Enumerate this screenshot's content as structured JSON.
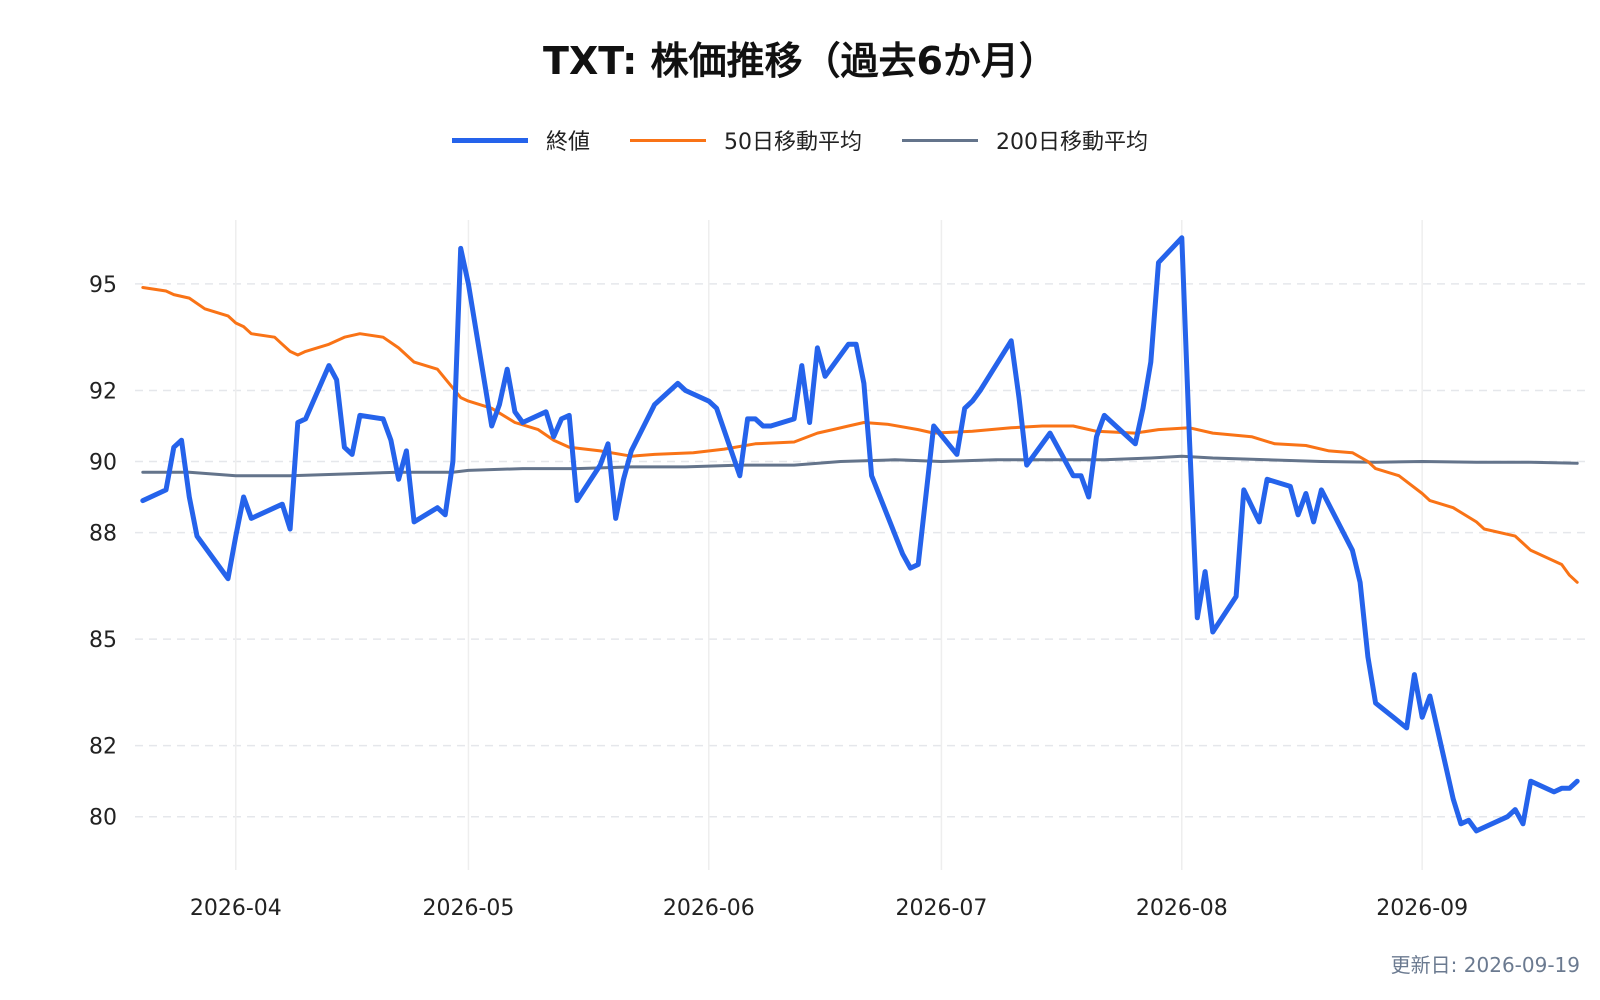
{
  "updated_note": "更新日: 2026-09-19",
  "chart_data": {
    "type": "line",
    "title": "TXT: 株価推移（過去6か月）",
    "xlabel": "",
    "ylabel": "",
    "x_ticks": [
      "2026-04",
      "2026-05",
      "2026-06",
      "2026-07",
      "2026-08",
      "2026-09"
    ],
    "y_ticks": [
      80,
      82,
      85,
      88,
      90,
      92,
      95
    ],
    "ylim": [
      78.5,
      96.8
    ],
    "xlim": [
      "2026-03-19",
      "2026-09-22"
    ],
    "grid": true,
    "legend_position": "top-center",
    "colors": {
      "close": "#2563eb",
      "ma50": "#f97316",
      "ma200": "#64748b",
      "grid": "#e5e7eb"
    },
    "series": [
      {
        "name": "終値",
        "key": "close",
        "points": [
          [
            "2026-03-20",
            88.9
          ],
          [
            "2026-03-23",
            89.2
          ],
          [
            "2026-03-24",
            90.4
          ],
          [
            "2026-03-25",
            90.6
          ],
          [
            "2026-03-26",
            89.0
          ],
          [
            "2026-03-27",
            87.9
          ],
          [
            "2026-03-30",
            87.0
          ],
          [
            "2026-03-31",
            86.7
          ],
          [
            "2026-04-01",
            87.9
          ],
          [
            "2026-04-02",
            89.0
          ],
          [
            "2026-04-03",
            88.4
          ],
          [
            "2026-04-06",
            88.7
          ],
          [
            "2026-04-07",
            88.8
          ],
          [
            "2026-04-08",
            88.1
          ],
          [
            "2026-04-09",
            91.1
          ],
          [
            "2026-04-10",
            91.2
          ],
          [
            "2026-04-13",
            92.7
          ],
          [
            "2026-04-14",
            92.3
          ],
          [
            "2026-04-15",
            90.4
          ],
          [
            "2026-04-16",
            90.2
          ],
          [
            "2026-04-17",
            91.3
          ],
          [
            "2026-04-20",
            91.2
          ],
          [
            "2026-04-21",
            90.6
          ],
          [
            "2026-04-22",
            89.5
          ],
          [
            "2026-04-23",
            90.3
          ],
          [
            "2026-04-24",
            88.3
          ],
          [
            "2026-04-27",
            88.7
          ],
          [
            "2026-04-28",
            88.5
          ],
          [
            "2026-04-29",
            90.0
          ],
          [
            "2026-04-30",
            96.0
          ],
          [
            "2026-05-01",
            95.0
          ],
          [
            "2026-05-04",
            91.0
          ],
          [
            "2026-05-05",
            91.6
          ],
          [
            "2026-05-06",
            92.6
          ],
          [
            "2026-05-07",
            91.4
          ],
          [
            "2026-05-08",
            91.1
          ],
          [
            "2026-05-11",
            91.4
          ],
          [
            "2026-05-12",
            90.7
          ],
          [
            "2026-05-13",
            91.2
          ],
          [
            "2026-05-14",
            91.3
          ],
          [
            "2026-05-15",
            88.9
          ],
          [
            "2026-05-18",
            89.9
          ],
          [
            "2026-05-19",
            90.5
          ],
          [
            "2026-05-20",
            88.4
          ],
          [
            "2026-05-21",
            89.5
          ],
          [
            "2026-05-22",
            90.3
          ],
          [
            "2026-05-25",
            91.6
          ],
          [
            "2026-05-28",
            92.2
          ],
          [
            "2026-05-29",
            92.0
          ],
          [
            "2026-06-01",
            91.7
          ],
          [
            "2026-06-02",
            91.5
          ],
          [
            "2026-06-05",
            89.6
          ],
          [
            "2026-06-06",
            91.2
          ],
          [
            "2026-06-07",
            91.2
          ],
          [
            "2026-06-08",
            91.0
          ],
          [
            "2026-06-09",
            91.0
          ],
          [
            "2026-06-12",
            91.2
          ],
          [
            "2026-06-13",
            92.7
          ],
          [
            "2026-06-14",
            91.1
          ],
          [
            "2026-06-15",
            93.2
          ],
          [
            "2026-06-16",
            92.4
          ],
          [
            "2026-06-19",
            93.3
          ],
          [
            "2026-06-20",
            93.3
          ],
          [
            "2026-06-21",
            92.2
          ],
          [
            "2026-06-22",
            89.6
          ],
          [
            "2026-06-26",
            87.4
          ],
          [
            "2026-06-27",
            87.0
          ],
          [
            "2026-06-28",
            87.1
          ],
          [
            "2026-06-30",
            91.0
          ],
          [
            "2026-07-03",
            90.2
          ],
          [
            "2026-07-04",
            91.5
          ],
          [
            "2026-07-05",
            91.7
          ],
          [
            "2026-07-06",
            92.0
          ],
          [
            "2026-07-10",
            93.4
          ],
          [
            "2026-07-11",
            91.8
          ],
          [
            "2026-07-12",
            89.9
          ],
          [
            "2026-07-15",
            90.8
          ],
          [
            "2026-07-18",
            89.6
          ],
          [
            "2026-07-19",
            89.6
          ],
          [
            "2026-07-20",
            89.0
          ],
          [
            "2026-07-21",
            90.7
          ],
          [
            "2026-07-22",
            91.3
          ],
          [
            "2026-07-26",
            90.5
          ],
          [
            "2026-07-27",
            91.5
          ],
          [
            "2026-07-28",
            92.8
          ],
          [
            "2026-07-29",
            95.6
          ],
          [
            "2026-08-01",
            96.3
          ],
          [
            "2026-08-02",
            90.6
          ],
          [
            "2026-08-03",
            85.6
          ],
          [
            "2026-08-04",
            86.9
          ],
          [
            "2026-08-05",
            85.2
          ],
          [
            "2026-08-08",
            86.2
          ],
          [
            "2026-08-09",
            89.2
          ],
          [
            "2026-08-11",
            88.3
          ],
          [
            "2026-08-12",
            89.5
          ],
          [
            "2026-08-15",
            89.3
          ],
          [
            "2026-08-16",
            88.5
          ],
          [
            "2026-08-17",
            89.1
          ],
          [
            "2026-08-18",
            88.3
          ],
          [
            "2026-08-19",
            89.2
          ],
          [
            "2026-08-23",
            87.5
          ],
          [
            "2026-08-24",
            86.6
          ],
          [
            "2026-08-25",
            84.5
          ],
          [
            "2026-08-26",
            83.2
          ],
          [
            "2026-08-30",
            82.5
          ],
          [
            "2026-08-31",
            84.0
          ],
          [
            "2026-09-01",
            82.8
          ],
          [
            "2026-09-02",
            83.4
          ],
          [
            "2026-09-05",
            80.5
          ],
          [
            "2026-09-06",
            79.8
          ],
          [
            "2026-09-07",
            79.9
          ],
          [
            "2026-09-08",
            79.6
          ],
          [
            "2026-09-12",
            80.0
          ],
          [
            "2026-09-13",
            80.2
          ],
          [
            "2026-09-14",
            79.8
          ],
          [
            "2026-09-15",
            81.0
          ],
          [
            "2026-09-18",
            80.7
          ],
          [
            "2026-09-19",
            80.8
          ],
          [
            "2026-09-20",
            80.8
          ],
          [
            "2026-09-21",
            81.0
          ]
        ]
      },
      {
        "name": "50日移動平均",
        "key": "ma50",
        "points": [
          [
            "2026-03-20",
            94.9
          ],
          [
            "2026-03-23",
            94.8
          ],
          [
            "2026-03-24",
            94.7
          ],
          [
            "2026-03-26",
            94.6
          ],
          [
            "2026-03-28",
            94.3
          ],
          [
            "2026-03-31",
            94.1
          ],
          [
            "2026-04-01",
            93.9
          ],
          [
            "2026-04-02",
            93.8
          ],
          [
            "2026-04-03",
            93.6
          ],
          [
            "2026-04-06",
            93.5
          ],
          [
            "2026-04-07",
            93.3
          ],
          [
            "2026-04-08",
            93.1
          ],
          [
            "2026-04-09",
            93.0
          ],
          [
            "2026-04-10",
            93.1
          ],
          [
            "2026-04-13",
            93.3
          ],
          [
            "2026-04-15",
            93.5
          ],
          [
            "2026-04-17",
            93.6
          ],
          [
            "2026-04-20",
            93.5
          ],
          [
            "2026-04-22",
            93.2
          ],
          [
            "2026-04-24",
            92.8
          ],
          [
            "2026-04-27",
            92.6
          ],
          [
            "2026-04-30",
            91.8
          ],
          [
            "2026-05-01",
            91.7
          ],
          [
            "2026-05-04",
            91.5
          ],
          [
            "2026-05-07",
            91.1
          ],
          [
            "2026-05-10",
            90.9
          ],
          [
            "2026-05-12",
            90.6
          ],
          [
            "2026-05-14",
            90.4
          ],
          [
            "2026-05-18",
            90.3
          ],
          [
            "2026-05-22",
            90.15
          ],
          [
            "2026-05-25",
            90.2
          ],
          [
            "2026-05-30",
            90.25
          ],
          [
            "2026-06-03",
            90.35
          ],
          [
            "2026-06-07",
            90.5
          ],
          [
            "2026-06-12",
            90.55
          ],
          [
            "2026-06-15",
            90.8
          ],
          [
            "2026-06-17",
            90.9
          ],
          [
            "2026-06-19",
            91.0
          ],
          [
            "2026-06-21",
            91.1
          ],
          [
            "2026-06-24",
            91.05
          ],
          [
            "2026-06-28",
            90.9
          ],
          [
            "2026-06-30",
            90.8
          ],
          [
            "2026-07-05",
            90.85
          ],
          [
            "2026-07-10",
            90.95
          ],
          [
            "2026-07-14",
            91.0
          ],
          [
            "2026-07-18",
            91.0
          ],
          [
            "2026-07-21",
            90.85
          ],
          [
            "2026-07-26",
            90.8
          ],
          [
            "2026-07-29",
            90.9
          ],
          [
            "2026-08-02",
            90.95
          ],
          [
            "2026-08-05",
            90.8
          ],
          [
            "2026-08-10",
            90.7
          ],
          [
            "2026-08-13",
            90.5
          ],
          [
            "2026-08-17",
            90.45
          ],
          [
            "2026-08-20",
            90.3
          ],
          [
            "2026-08-23",
            90.25
          ],
          [
            "2026-08-25",
            90.0
          ],
          [
            "2026-08-26",
            89.8
          ],
          [
            "2026-08-29",
            89.6
          ],
          [
            "2026-09-01",
            89.1
          ],
          [
            "2026-09-02",
            88.9
          ],
          [
            "2026-09-05",
            88.7
          ],
          [
            "2026-09-08",
            88.3
          ],
          [
            "2026-09-09",
            88.1
          ],
          [
            "2026-09-13",
            87.9
          ],
          [
            "2026-09-15",
            87.5
          ],
          [
            "2026-09-17",
            87.3
          ],
          [
            "2026-09-19",
            87.1
          ],
          [
            "2026-09-20",
            86.8
          ],
          [
            "2026-09-21",
            86.6
          ]
        ]
      },
      {
        "name": "200日移動平均",
        "key": "ma200",
        "points": [
          [
            "2026-03-20",
            89.7
          ],
          [
            "2026-03-26",
            89.7
          ],
          [
            "2026-04-01",
            89.6
          ],
          [
            "2026-04-08",
            89.6
          ],
          [
            "2026-04-15",
            89.65
          ],
          [
            "2026-04-22",
            89.7
          ],
          [
            "2026-04-29",
            89.7
          ],
          [
            "2026-05-01",
            89.75
          ],
          [
            "2026-05-08",
            89.8
          ],
          [
            "2026-05-15",
            89.8
          ],
          [
            "2026-05-22",
            89.85
          ],
          [
            "2026-05-29",
            89.85
          ],
          [
            "2026-06-05",
            89.9
          ],
          [
            "2026-06-12",
            89.9
          ],
          [
            "2026-06-18",
            90.0
          ],
          [
            "2026-06-25",
            90.05
          ],
          [
            "2026-07-01",
            90.0
          ],
          [
            "2026-07-08",
            90.05
          ],
          [
            "2026-07-15",
            90.05
          ],
          [
            "2026-07-22",
            90.05
          ],
          [
            "2026-07-28",
            90.1
          ],
          [
            "2026-08-01",
            90.15
          ],
          [
            "2026-08-05",
            90.1
          ],
          [
            "2026-08-12",
            90.05
          ],
          [
            "2026-08-19",
            90.0
          ],
          [
            "2026-08-26",
            89.98
          ],
          [
            "2026-09-01",
            90.0
          ],
          [
            "2026-09-08",
            89.98
          ],
          [
            "2026-09-15",
            89.98
          ],
          [
            "2026-09-21",
            89.95
          ]
        ]
      }
    ]
  }
}
